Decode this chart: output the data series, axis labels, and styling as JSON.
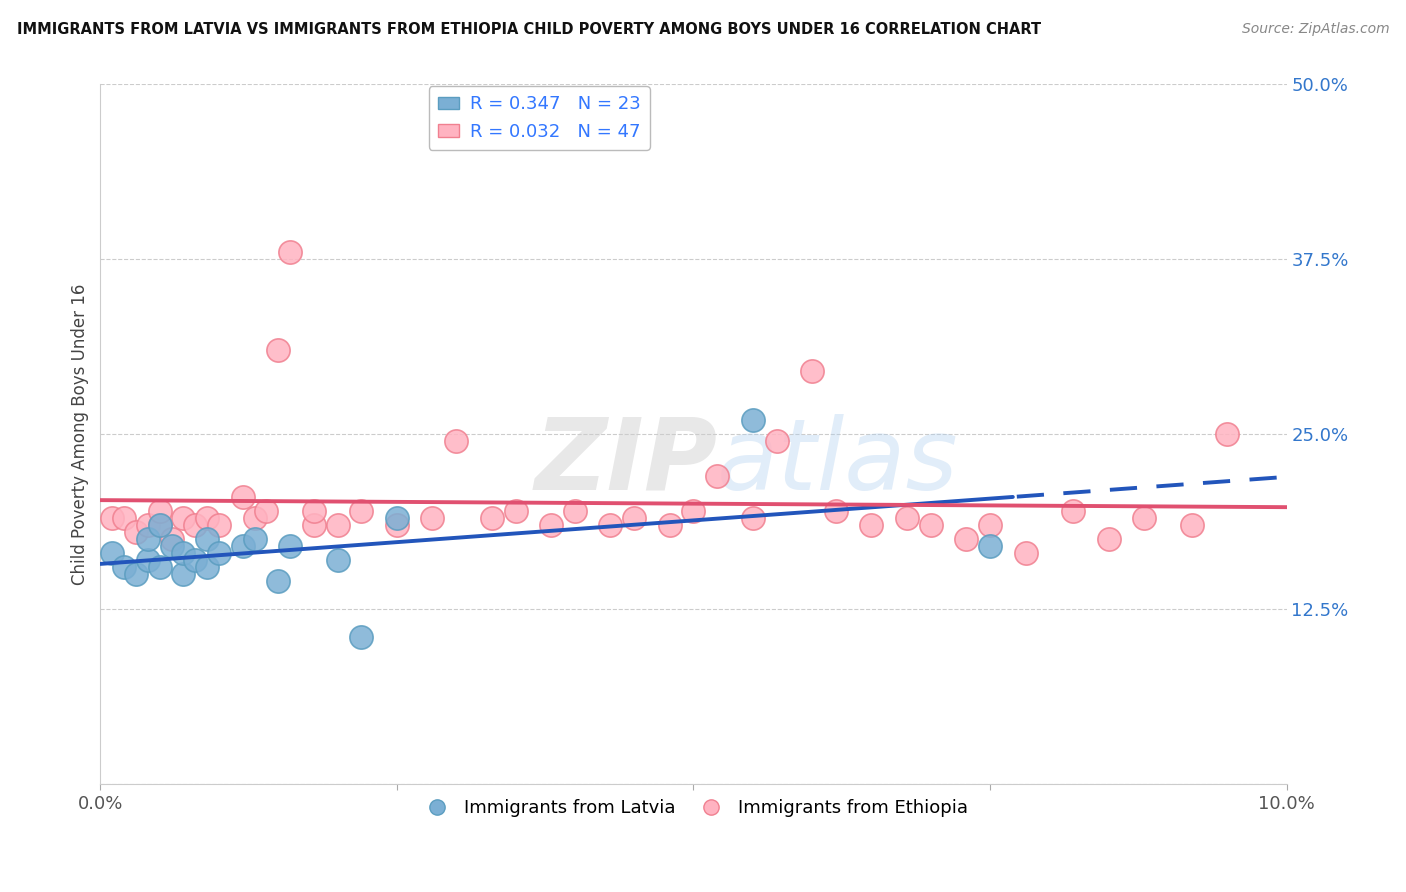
{
  "title": "IMMIGRANTS FROM LATVIA VS IMMIGRANTS FROM ETHIOPIA CHILD POVERTY AMONG BOYS UNDER 16 CORRELATION CHART",
  "source": "Source: ZipAtlas.com",
  "ylabel": "Child Poverty Among Boys Under 16",
  "xlim": [
    0.0,
    0.1
  ],
  "ylim": [
    0.0,
    0.5
  ],
  "yticks": [
    0.0,
    0.125,
    0.25,
    0.375,
    0.5
  ],
  "ytick_labels": [
    "",
    "12.5%",
    "25.0%",
    "37.5%",
    "50.0%"
  ],
  "xticks": [
    0.0,
    0.025,
    0.05,
    0.075,
    0.1
  ],
  "xtick_labels": [
    "0.0%",
    "",
    "",
    "",
    "10.0%"
  ],
  "latvia_color": "#7BAFD4",
  "latvia_edge": "#5B9DC0",
  "ethiopia_color": "#FFB3C1",
  "ethiopia_edge": "#F08090",
  "line_latvia_color": "#2255BB",
  "line_ethiopia_color": "#E05070",
  "latvia_R": 0.347,
  "latvia_N": 23,
  "ethiopia_R": 0.032,
  "ethiopia_N": 47,
  "watermark_zip": "ZIP",
  "watermark_atlas": "atlas",
  "latvia_x": [
    0.001,
    0.002,
    0.003,
    0.004,
    0.004,
    0.005,
    0.005,
    0.006,
    0.007,
    0.007,
    0.008,
    0.009,
    0.009,
    0.01,
    0.012,
    0.013,
    0.015,
    0.016,
    0.02,
    0.022,
    0.025,
    0.055,
    0.075
  ],
  "latvia_y": [
    0.165,
    0.155,
    0.15,
    0.16,
    0.175,
    0.155,
    0.185,
    0.17,
    0.15,
    0.165,
    0.16,
    0.155,
    0.175,
    0.165,
    0.17,
    0.175,
    0.145,
    0.17,
    0.16,
    0.105,
    0.19,
    0.26,
    0.17
  ],
  "ethiopia_x": [
    0.001,
    0.002,
    0.003,
    0.004,
    0.005,
    0.005,
    0.006,
    0.007,
    0.008,
    0.009,
    0.01,
    0.012,
    0.013,
    0.014,
    0.015,
    0.016,
    0.018,
    0.018,
    0.02,
    0.022,
    0.025,
    0.028,
    0.03,
    0.033,
    0.035,
    0.038,
    0.04,
    0.043,
    0.045,
    0.048,
    0.05,
    0.052,
    0.055,
    0.057,
    0.06,
    0.062,
    0.065,
    0.068,
    0.07,
    0.073,
    0.075,
    0.078,
    0.082,
    0.085,
    0.088,
    0.092,
    0.095
  ],
  "ethiopia_y": [
    0.19,
    0.19,
    0.18,
    0.185,
    0.185,
    0.195,
    0.175,
    0.19,
    0.185,
    0.19,
    0.185,
    0.205,
    0.19,
    0.195,
    0.31,
    0.38,
    0.185,
    0.195,
    0.185,
    0.195,
    0.185,
    0.19,
    0.245,
    0.19,
    0.195,
    0.185,
    0.195,
    0.185,
    0.19,
    0.185,
    0.195,
    0.22,
    0.19,
    0.245,
    0.295,
    0.195,
    0.185,
    0.19,
    0.185,
    0.175,
    0.185,
    0.165,
    0.195,
    0.175,
    0.19,
    0.185,
    0.25
  ]
}
